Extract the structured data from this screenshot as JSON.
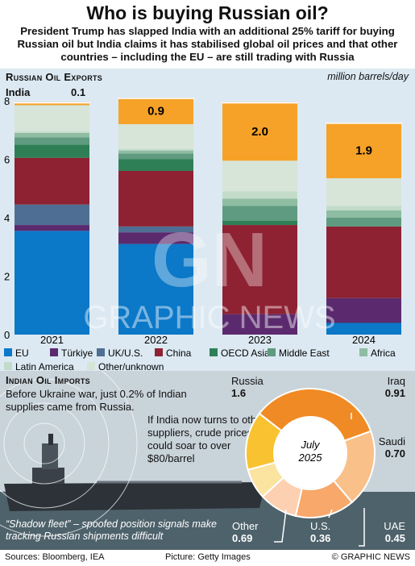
{
  "header": {
    "title": "Who is buying Russian oil?",
    "subtitle": "President Trump has slapped India with an additional 25% tariff for buying Russian oil but India claims it has stabilised global oil prices and that other countries – including the EU – are still trading with Russia"
  },
  "exports": {
    "title": "Russian Oil Exports",
    "unit": "million barrels/day",
    "india_label": "India",
    "india_2021": "0.1"
  },
  "chart_data": {
    "type": "bar",
    "stacked": true,
    "categories": [
      "2021",
      "2022",
      "2023",
      "2024"
    ],
    "ylim": [
      0,
      8
    ],
    "yticks": [
      0,
      2,
      4,
      6,
      8
    ],
    "grid": false,
    "series": [
      {
        "name": "EU",
        "color": "#0b78c8",
        "values": [
          3.55,
          3.1,
          0.0,
          0.4
        ]
      },
      {
        "name": "Türkiye",
        "color": "#5b2a6e",
        "values": [
          0.2,
          0.4,
          0.7,
          0.85
        ]
      },
      {
        "name": "UK/U.S.",
        "color": "#4f6e93",
        "values": [
          0.7,
          0.2,
          0.0,
          0.0
        ]
      },
      {
        "name": "China",
        "color": "#8e2232",
        "values": [
          1.6,
          1.9,
          3.05,
          2.45
        ]
      },
      {
        "name": "OECD Asia",
        "color": "#2e7f56",
        "values": [
          0.45,
          0.4,
          0.15,
          0.0
        ]
      },
      {
        "name": "Middle East",
        "color": "#5f9b80",
        "values": [
          0.25,
          0.2,
          0.5,
          0.3
        ]
      },
      {
        "name": "Africa",
        "color": "#8fbda2",
        "values": [
          0.15,
          0.1,
          0.25,
          0.25
        ]
      },
      {
        "name": "Latin America",
        "color": "#c2dcc9",
        "values": [
          0.05,
          0.05,
          0.25,
          0.15
        ]
      },
      {
        "name": "Other/unknown",
        "color": "#d7e4d8",
        "values": [
          0.9,
          0.85,
          1.05,
          0.95
        ]
      },
      {
        "name": "India",
        "color": "#f6a228",
        "values": [
          0.1,
          0.9,
          2.0,
          1.9
        ]
      }
    ],
    "data_labels": [
      "0.1",
      "0.9",
      "2.0",
      "1.9"
    ]
  },
  "legend": [
    {
      "label": "EU",
      "color": "#0b78c8"
    },
    {
      "label": "Türkiye",
      "color": "#5b2a6e"
    },
    {
      "label": "UK/U.S.",
      "color": "#4f6e93"
    },
    {
      "label": "China",
      "color": "#8e2232"
    },
    {
      "label": "OECD Asia",
      "color": "#2e7f56"
    },
    {
      "label": "Middle East",
      "color": "#5f9b80"
    },
    {
      "label": "Africa",
      "color": "#8fbda2"
    },
    {
      "label": "Latin America",
      "color": "#c2dcc9"
    },
    {
      "label": "Other/unknown",
      "color": "#d7e4d8"
    }
  ],
  "imports": {
    "title": "Indian Oil Imports",
    "note1": "Before Ukraine war, just 0.2% of Indian supplies came from Russia.",
    "note2": "If India now turns to other suppliers, crude prices could soar to over $80/barrel",
    "shadow_note": "“Shadow fleet” – spoofed position signals make tracking Russian shipments difficult",
    "donut_center_line1": "July",
    "donut_center_line2": "2025",
    "donut": [
      {
        "name": "Russia",
        "value": 1.6,
        "label": "1.6",
        "color": "#f08a24"
      },
      {
        "name": "Iraq",
        "value": 0.91,
        "label": "0.91",
        "color": "#f9c08a"
      },
      {
        "name": "Saudi",
        "value": 0.7,
        "label": "0.70",
        "color": "#f7a86a"
      },
      {
        "name": "UAE",
        "value": 0.45,
        "label": "0.45",
        "color": "#fcd0b0"
      },
      {
        "name": "U.S.",
        "value": 0.36,
        "label": "0.36",
        "color": "#fbe3a0"
      },
      {
        "name": "Other",
        "value": 0.69,
        "label": "0.69",
        "color": "#f8c230"
      }
    ]
  },
  "watermark": {
    "letters": "GN",
    "text": "GRAPHIC NEWS"
  },
  "footer": {
    "sources": "Sources: Bloomberg, IEA",
    "picture": "Picture: Getty Images",
    "credit": "© GRAPHIC NEWS"
  }
}
